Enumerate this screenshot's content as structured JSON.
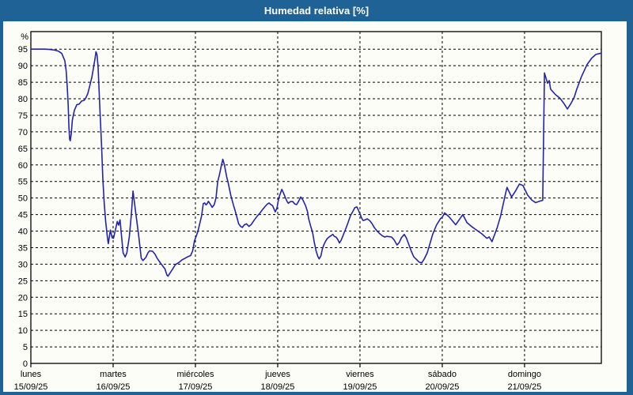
{
  "title": "Humedad relativa [%]",
  "colors": {
    "titlebar": "#1f6396",
    "title_text": "#ffffff",
    "background": "#fcfdf6",
    "line": "#2323b0",
    "grid": "#000000",
    "frame": "#000000",
    "label_text": "#000000"
  },
  "chart_data": {
    "type": "line",
    "title": "Humedad relativa [%]",
    "ylabel": "%",
    "y_unit_label": "%",
    "ylim": [
      0,
      100.3
    ],
    "y_ticks": [
      0,
      5,
      10,
      15,
      20,
      25,
      30,
      35,
      40,
      45,
      50,
      55,
      60,
      65,
      70,
      75,
      80,
      85,
      90,
      95
    ],
    "x_total_hours": 166.4,
    "grid": "dashed",
    "legend_position": "none",
    "x_day_ticks": [
      {
        "t": 0,
        "day": "lunes",
        "date": "15/09/25"
      },
      {
        "t": 24,
        "day": "martes",
        "date": "16/09/25"
      },
      {
        "t": 48,
        "day": "miércoles",
        "date": "17/09/25"
      },
      {
        "t": 72,
        "day": "jueves",
        "date": "18/09/25"
      },
      {
        "t": 96,
        "day": "viernes",
        "date": "19/09/25"
      },
      {
        "t": 120,
        "day": "sábado",
        "date": "20/09/25"
      },
      {
        "t": 144,
        "day": "domingo",
        "date": "21/09/25"
      }
    ],
    "series": [
      {
        "name": "Humedad relativa",
        "points": [
          [
            0,
            95
          ],
          [
            2,
            95
          ],
          [
            4,
            95
          ],
          [
            5.5,
            94.9
          ],
          [
            6.9,
            94.7
          ],
          [
            8,
            94.4
          ],
          [
            9,
            93.7
          ],
          [
            9.9,
            91.5
          ],
          [
            10.3,
            88.5
          ],
          [
            10.6,
            84
          ],
          [
            10.9,
            78
          ],
          [
            11.1,
            71.5
          ],
          [
            11.3,
            67.8
          ],
          [
            11.5,
            67.3
          ],
          [
            11.8,
            69.5
          ],
          [
            12.1,
            73.5
          ],
          [
            12.7,
            76.5
          ],
          [
            13.4,
            78.2
          ],
          [
            14.1,
            78.4
          ],
          [
            14.8,
            79.3
          ],
          [
            15.5,
            79.5
          ],
          [
            15.9,
            80
          ],
          [
            16.6,
            81.5
          ],
          [
            17.1,
            83.6
          ],
          [
            17.8,
            86.5
          ],
          [
            18.2,
            89
          ],
          [
            18.7,
            92
          ],
          [
            19,
            94.2
          ],
          [
            19.3,
            93.3
          ],
          [
            19.6,
            89.9
          ],
          [
            20.2,
            75.6
          ],
          [
            20.6,
            66.1
          ],
          [
            21,
            55.7
          ],
          [
            21.4,
            48.5
          ],
          [
            21.8,
            43
          ],
          [
            22.4,
            37.4
          ],
          [
            22.6,
            36.2
          ],
          [
            23.2,
            40.3
          ],
          [
            23.7,
            38
          ],
          [
            24.1,
            37.8
          ],
          [
            24.7,
            40.5
          ],
          [
            25.2,
            42.9
          ],
          [
            25.6,
            41.8
          ],
          [
            26,
            43.4
          ],
          [
            26.5,
            38
          ],
          [
            26.9,
            33.4
          ],
          [
            27.5,
            32.2
          ],
          [
            28,
            33.4
          ],
          [
            28.7,
            38.2
          ],
          [
            29.3,
            45
          ],
          [
            29.8,
            52.1
          ],
          [
            30.6,
            45.4
          ],
          [
            31.4,
            39
          ],
          [
            32.2,
            31.8
          ],
          [
            32.7,
            31.1
          ],
          [
            33.5,
            32
          ],
          [
            34.2,
            33.5
          ],
          [
            34.6,
            34
          ],
          [
            35.5,
            33.9
          ],
          [
            36.2,
            33
          ],
          [
            36.8,
            31.8
          ],
          [
            37.9,
            30.2
          ],
          [
            39.1,
            28.6
          ],
          [
            39.7,
            26.7
          ],
          [
            40,
            26.4
          ],
          [
            40.7,
            27.5
          ],
          [
            41.4,
            28.6
          ],
          [
            42.1,
            29.8
          ],
          [
            43.3,
            30.6
          ],
          [
            44.1,
            31.3
          ],
          [
            45,
            31.8
          ],
          [
            45.9,
            32.3
          ],
          [
            46.6,
            32.6
          ],
          [
            47.2,
            34
          ],
          [
            47.7,
            37
          ],
          [
            48.7,
            39.8
          ],
          [
            49.8,
            44.6
          ],
          [
            50.3,
            48.3
          ],
          [
            50.7,
            48.5
          ],
          [
            51.1,
            47.9
          ],
          [
            51.5,
            48.4
          ],
          [
            51.8,
            49
          ],
          [
            52.3,
            48.2
          ],
          [
            52.9,
            47.2
          ],
          [
            53.5,
            48
          ],
          [
            54,
            50
          ],
          [
            54.5,
            54.9
          ],
          [
            55,
            57
          ],
          [
            55.5,
            59.5
          ],
          [
            56,
            61.7
          ],
          [
            56.5,
            59.8
          ],
          [
            57.1,
            56.5
          ],
          [
            57.5,
            54.9
          ],
          [
            58.3,
            50.9
          ],
          [
            59.1,
            47.8
          ],
          [
            59.8,
            45.4
          ],
          [
            60.6,
            42.2
          ],
          [
            61.2,
            41.4
          ],
          [
            61.7,
            41.1
          ],
          [
            62.3,
            41.9
          ],
          [
            62.9,
            42.2
          ],
          [
            63.6,
            41.4
          ],
          [
            64.3,
            42
          ],
          [
            65.2,
            43.4
          ],
          [
            66,
            44.5
          ],
          [
            66.8,
            45.4
          ],
          [
            67.5,
            46.4
          ],
          [
            68.3,
            47.4
          ],
          [
            68.9,
            48.1
          ],
          [
            69.5,
            48.5
          ],
          [
            70,
            48
          ],
          [
            70.5,
            47.7
          ],
          [
            71,
            46.5
          ],
          [
            71.3,
            45.8
          ],
          [
            71.8,
            47
          ],
          [
            72.3,
            50
          ],
          [
            73.2,
            52.6
          ],
          [
            73.7,
            51.5
          ],
          [
            74.2,
            50.2
          ],
          [
            74.7,
            49
          ],
          [
            75.1,
            48.4
          ],
          [
            75.7,
            48.9
          ],
          [
            76.4,
            48.9
          ],
          [
            77,
            48.2
          ],
          [
            77.5,
            48
          ],
          [
            78.1,
            49
          ],
          [
            78.7,
            50.3
          ],
          [
            79.3,
            49.5
          ],
          [
            79.8,
            48.4
          ],
          [
            80.2,
            47.5
          ],
          [
            80.7,
            45.8
          ],
          [
            81,
            43.8
          ],
          [
            81.6,
            41.5
          ],
          [
            82.2,
            39.4
          ],
          [
            82.7,
            36.5
          ],
          [
            83.2,
            34
          ],
          [
            83.7,
            32.3
          ],
          [
            84.1,
            31.6
          ],
          [
            84.6,
            32.5
          ],
          [
            85,
            34.5
          ],
          [
            85.5,
            36
          ],
          [
            86,
            37
          ],
          [
            86.5,
            37.8
          ],
          [
            87.1,
            38.3
          ],
          [
            87.7,
            38.7
          ],
          [
            88.1,
            39
          ],
          [
            88.5,
            38.4
          ],
          [
            89,
            38.2
          ],
          [
            89.5,
            37.5
          ],
          [
            90,
            36.4
          ],
          [
            90.5,
            37.2
          ],
          [
            91,
            38.5
          ],
          [
            91.8,
            40.6
          ],
          [
            92.5,
            42.5
          ],
          [
            93.2,
            44.6
          ],
          [
            94,
            46.1
          ],
          [
            94.5,
            47.1
          ],
          [
            95.1,
            47.3
          ],
          [
            95.5,
            46.4
          ],
          [
            96,
            45.2
          ],
          [
            96.5,
            43.9
          ],
          [
            96.9,
            43.2
          ],
          [
            97.5,
            43.4
          ],
          [
            98.1,
            43.7
          ],
          [
            98.8,
            43.2
          ],
          [
            99.5,
            42.3
          ],
          [
            100.2,
            41
          ],
          [
            101,
            40
          ],
          [
            101.8,
            39.2
          ],
          [
            102.5,
            38.6
          ],
          [
            103.2,
            38.2
          ],
          [
            103.8,
            38.4
          ],
          [
            104.5,
            38.3
          ],
          [
            105.2,
            38.2
          ],
          [
            105.9,
            37.4
          ],
          [
            106.8,
            35.8
          ],
          [
            107.4,
            36.5
          ],
          [
            108.1,
            38
          ],
          [
            108.9,
            39
          ],
          [
            109.5,
            38
          ],
          [
            110.3,
            35.8
          ],
          [
            111,
            33.8
          ],
          [
            111.7,
            32.2
          ],
          [
            112.6,
            31.3
          ],
          [
            113.3,
            30.6
          ],
          [
            114,
            30.4
          ],
          [
            114.7,
            31.5
          ],
          [
            115.6,
            33.4
          ],
          [
            116.3,
            35.8
          ],
          [
            117.2,
            39
          ],
          [
            118.3,
            41.8
          ],
          [
            119.5,
            43.8
          ],
          [
            120,
            44.2
          ],
          [
            120.7,
            45.5
          ],
          [
            122,
            44.3
          ],
          [
            123.9,
            41.9
          ],
          [
            125,
            43.5
          ],
          [
            126,
            45
          ],
          [
            127.2,
            42.6
          ],
          [
            128.4,
            41.5
          ],
          [
            129.6,
            40.6
          ],
          [
            131.5,
            39.2
          ],
          [
            133,
            37.8
          ],
          [
            133.7,
            38.2
          ],
          [
            134.5,
            36.8
          ],
          [
            136,
            41
          ],
          [
            137,
            44.5
          ],
          [
            138.5,
            51.5
          ],
          [
            138.9,
            53.2
          ],
          [
            140.2,
            50.3
          ],
          [
            141.3,
            52
          ],
          [
            142.5,
            54.2
          ],
          [
            143.5,
            53.8
          ],
          [
            144,
            52.8
          ],
          [
            144.9,
            50.9
          ],
          [
            146.1,
            49.4
          ],
          [
            147.2,
            48.6
          ],
          [
            148.6,
            49.1
          ],
          [
            149.3,
            49.3
          ],
          [
            149.8,
            87.8
          ],
          [
            150.7,
            84.7
          ],
          [
            151.2,
            85.5
          ],
          [
            151.6,
            82.9
          ],
          [
            153,
            81.3
          ],
          [
            154.4,
            80.1
          ],
          [
            155.6,
            78.4
          ],
          [
            156.5,
            76.9
          ],
          [
            157.6,
            78.7
          ],
          [
            158.5,
            80.5
          ],
          [
            159.2,
            82.8
          ],
          [
            160.6,
            86.7
          ],
          [
            162.2,
            90.3
          ],
          [
            163.6,
            92.3
          ],
          [
            164.8,
            93.4
          ],
          [
            166.4,
            93.8
          ]
        ]
      }
    ]
  }
}
